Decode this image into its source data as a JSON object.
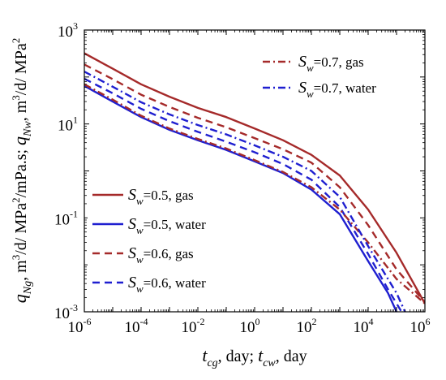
{
  "chart_data": {
    "type": "line",
    "title": "",
    "xlabel": "t_cg, day; t_cw, day",
    "ylabel": "q_Ng, m3/d/ MPa2/mPa.s; q_Nw, m3/d/ MPa2",
    "xscale": "log",
    "yscale": "log",
    "xlim": [
      1e-06,
      1000000.0
    ],
    "ylim": [
      0.001,
      1000.0
    ],
    "x_ticks": [
      {
        "base": "10",
        "exp": "-6",
        "value": 1e-06
      },
      {
        "base": "10",
        "exp": "-4",
        "value": 0.0001
      },
      {
        "base": "10",
        "exp": "-2",
        "value": 0.01
      },
      {
        "base": "10",
        "exp": "0",
        "value": 1
      },
      {
        "base": "10",
        "exp": "2",
        "value": 100.0
      },
      {
        "base": "10",
        "exp": "4",
        "value": 10000.0
      },
      {
        "base": "10",
        "exp": "6",
        "value": 1000000.0
      }
    ],
    "y_ticks": [
      {
        "base": "10",
        "exp": "-3",
        "value": 0.001
      },
      {
        "base": "10",
        "exp": "-1",
        "value": 0.1
      },
      {
        "base": "10",
        "exp": "1",
        "value": 10
      },
      {
        "base": "10",
        "exp": "3",
        "value": 1000.0
      }
    ],
    "series": [
      {
        "name": "Sw=0.5, gas",
        "color": "#a52a2a",
        "dash": "solid",
        "x": [
          1e-06,
          1e-05,
          0.0001,
          0.001,
          0.01,
          0.1,
          1,
          10,
          100,
          1000,
          10000,
          100000,
          1000000
        ],
        "y": [
          320,
          150,
          70,
          38,
          22,
          14,
          8,
          4.5,
          2.2,
          0.8,
          0.15,
          0.018,
          0.0015
        ]
      },
      {
        "name": "Sw=0.5, water",
        "color": "#1f1fd0",
        "dash": "solid",
        "x": [
          1e-06,
          1e-05,
          0.0001,
          0.001,
          0.01,
          0.1,
          1,
          10,
          100,
          1000,
          10000,
          50000,
          100000
        ],
        "y": [
          65,
          30,
          14,
          7.5,
          4.5,
          2.8,
          1.6,
          0.9,
          0.4,
          0.12,
          0.012,
          0.0025,
          0.001
        ]
      },
      {
        "name": "Sw=0.6, gas",
        "color": "#a52a2a",
        "dash": "dash",
        "x": [
          1e-06,
          1e-05,
          0.0001,
          0.001,
          0.01,
          0.1,
          1,
          10,
          100,
          1000,
          10000,
          100000,
          1000000
        ],
        "y": [
          185,
          90,
          42,
          23,
          13.5,
          8.5,
          5,
          2.9,
          1.5,
          0.45,
          0.07,
          0.008,
          0.0016
        ]
      },
      {
        "name": "Sw=0.6, water",
        "color": "#1f1fd0",
        "dash": "dash",
        "x": [
          1e-06,
          1e-05,
          0.0001,
          0.001,
          0.01,
          0.1,
          1,
          10,
          100,
          1000,
          10000,
          50000,
          150000
        ],
        "y": [
          92,
          45,
          21,
          11.5,
          6.8,
          4.2,
          2.5,
          1.4,
          0.65,
          0.17,
          0.017,
          0.003,
          0.001
        ]
      },
      {
        "name": "Sw=0.7, gas",
        "color": "#a52a2a",
        "dash": "dashdot",
        "x": [
          1e-06,
          1e-05,
          0.0001,
          0.001,
          0.01,
          0.1,
          1,
          10,
          100,
          1000,
          10000,
          100000,
          1000000
        ],
        "y": [
          70,
          33,
          15,
          8,
          4.8,
          3,
          1.7,
          0.95,
          0.45,
          0.15,
          0.03,
          0.005,
          0.0015
        ]
      },
      {
        "name": "Sw=0.7, water",
        "color": "#1f1fd0",
        "dash": "dashdot",
        "x": [
          1e-06,
          1e-05,
          0.0001,
          0.001,
          0.01,
          0.1,
          1,
          10,
          100,
          1000,
          10000,
          100000,
          200000
        ],
        "y": [
          130,
          62,
          29,
          16,
          9.5,
          6,
          3.5,
          2,
          1,
          0.28,
          0.025,
          0.0025,
          0.001
        ]
      }
    ],
    "legend_top": [
      {
        "symbol": "S",
        "sub": "w",
        "text": "=0.7, gas",
        "series": 4
      },
      {
        "symbol": "S",
        "sub": "w",
        "text": "=0.7, water",
        "series": 5
      }
    ],
    "legend_bottom": [
      {
        "symbol": "S",
        "sub": "w",
        "text": "=0.5, gas",
        "series": 0
      },
      {
        "symbol": "S",
        "sub": "w",
        "text": "=0.5, water",
        "series": 1
      },
      {
        "symbol": "S",
        "sub": "w",
        "text": "=0.6, gas",
        "series": 2
      },
      {
        "symbol": "S",
        "sub": "w",
        "text": "=0.6, water",
        "series": 3
      }
    ],
    "axis_label_parts": {
      "x": {
        "a": "t",
        "a_sub": "cg",
        "b": ", day; ",
        "c": "t",
        "c_sub": "cw",
        "d": ", day"
      },
      "y": {
        "a": "q",
        "a_sub": "Ng",
        "b": ", m",
        "b_sup": "3",
        "c": "/d/ MPa",
        "c_sup": "2",
        "d": "/mPa.s; ",
        "e": "q",
        "e_sub": "Nw",
        "f": ", m",
        "f_sup": "3",
        "g": "/d/ MPa",
        "g_sup": "2"
      }
    }
  }
}
